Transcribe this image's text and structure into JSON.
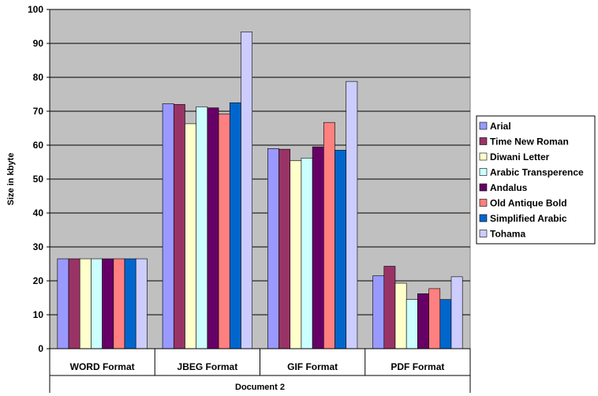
{
  "chart_data": {
    "type": "bar",
    "title": "",
    "xlabel": "Document 2",
    "ylabel": "Size in  kbyte",
    "ylim": [
      0,
      100
    ],
    "yticks": [
      0,
      10,
      20,
      30,
      40,
      50,
      60,
      70,
      80,
      90,
      100
    ],
    "grid": true,
    "legend_position": "right",
    "categories": [
      "WORD  Format",
      "JBEG Format",
      "GIF Format",
      "PDF Format"
    ],
    "series": [
      {
        "name": "Arial",
        "color": "#9999FF",
        "values": [
          26.5,
          72.2,
          59.0,
          21.5
        ]
      },
      {
        "name": "Time New Roman",
        "color": "#993366",
        "values": [
          26.5,
          72.0,
          58.8,
          24.3
        ]
      },
      {
        "name": "Diwani Letter",
        "color": "#FFFFCC",
        "values": [
          26.5,
          66.3,
          55.4,
          19.3
        ]
      },
      {
        "name": "Arabic Transperence",
        "color": "#CCFFFF",
        "values": [
          26.5,
          71.3,
          56.2,
          14.5
        ]
      },
      {
        "name": "Andalus",
        "color": "#660066",
        "values": [
          26.5,
          71.0,
          59.5,
          16.2
        ]
      },
      {
        "name": "Old Antique Bold",
        "color": "#FF8080",
        "values": [
          26.5,
          69.2,
          66.7,
          17.7
        ]
      },
      {
        "name": "Simplified Arabic",
        "color": "#0066CC",
        "values": [
          26.5,
          72.5,
          58.5,
          14.5
        ]
      },
      {
        "name": "Tohama",
        "color": "#CCCCFF",
        "values": [
          26.5,
          93.4,
          78.8,
          21.2
        ]
      }
    ],
    "plot_background": "#C0C0C0"
  }
}
